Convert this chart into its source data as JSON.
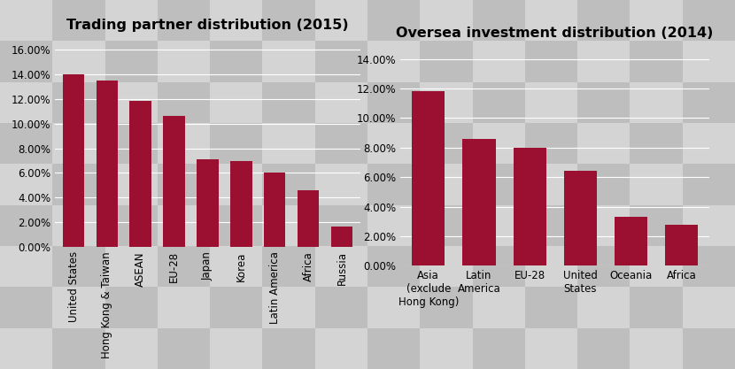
{
  "chart1": {
    "title": "Trading partner distribution (2015)",
    "categories": [
      "United States",
      "Hong Kong & Taiwan",
      "ASEAN",
      "EU-28",
      "Japan",
      "Korea",
      "Latin America",
      "Africa",
      "Russia"
    ],
    "values": [
      0.14,
      0.135,
      0.118,
      0.106,
      0.071,
      0.07,
      0.06,
      0.046,
      0.017
    ],
    "ylim": [
      0,
      0.17
    ],
    "yticks": [
      0.0,
      0.02,
      0.04,
      0.06,
      0.08,
      0.1,
      0.12,
      0.14,
      0.16
    ],
    "ytick_labels": [
      "0.00%",
      "2.00%",
      "4.00%",
      "6.00%",
      "8.00%",
      "10.00%",
      "12.00%",
      "14.00%",
      "16.00%"
    ]
  },
  "chart2": {
    "title": "Oversea investment distribution (2014)",
    "categories": [
      "Asia\n(exclude\nHong Kong)",
      "Latin\nAmerica",
      "EU-28",
      "United\nStates",
      "Oceania",
      "Africa"
    ],
    "values": [
      0.118,
      0.086,
      0.08,
      0.064,
      0.033,
      0.028
    ],
    "ylim": [
      0,
      0.15
    ],
    "yticks": [
      0.0,
      0.02,
      0.04,
      0.06,
      0.08,
      0.1,
      0.12,
      0.14
    ],
    "ytick_labels": [
      "0.00%",
      "2.00%",
      "4.00%",
      "6.00%",
      "8.00%",
      "10.00%",
      "12.00%",
      "14.00%"
    ]
  },
  "bar_color": "#9B1030",
  "checker_light": "#D4D4D4",
  "checker_dark": "#BEBEBE",
  "title_fontsize": 11.5,
  "tick_fontsize": 8.5,
  "checker_cols": 14,
  "checker_rows": 9
}
